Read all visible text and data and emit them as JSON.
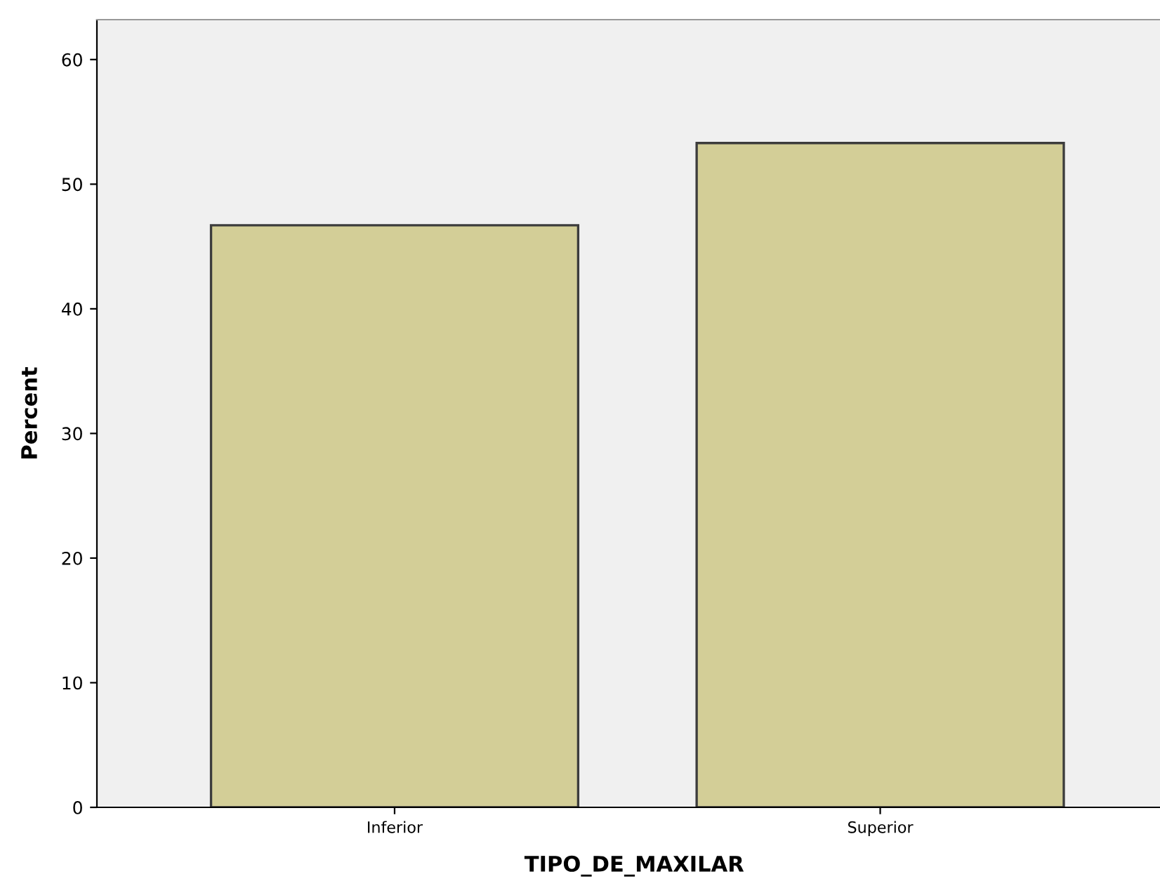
{
  "chart_data": {
    "type": "bar",
    "xlabel": "TIPO_DE_MAXILAR",
    "ylabel": "Percent",
    "categories": [
      "Inferior",
      "Superior"
    ],
    "values": [
      46.7,
      53.3
    ],
    "color": "#d3ce97",
    "ylim": [
      0,
      63.2
    ],
    "yticks": [
      0,
      10,
      20,
      30,
      40,
      50,
      60
    ],
    "grid": false,
    "legend": false
  }
}
